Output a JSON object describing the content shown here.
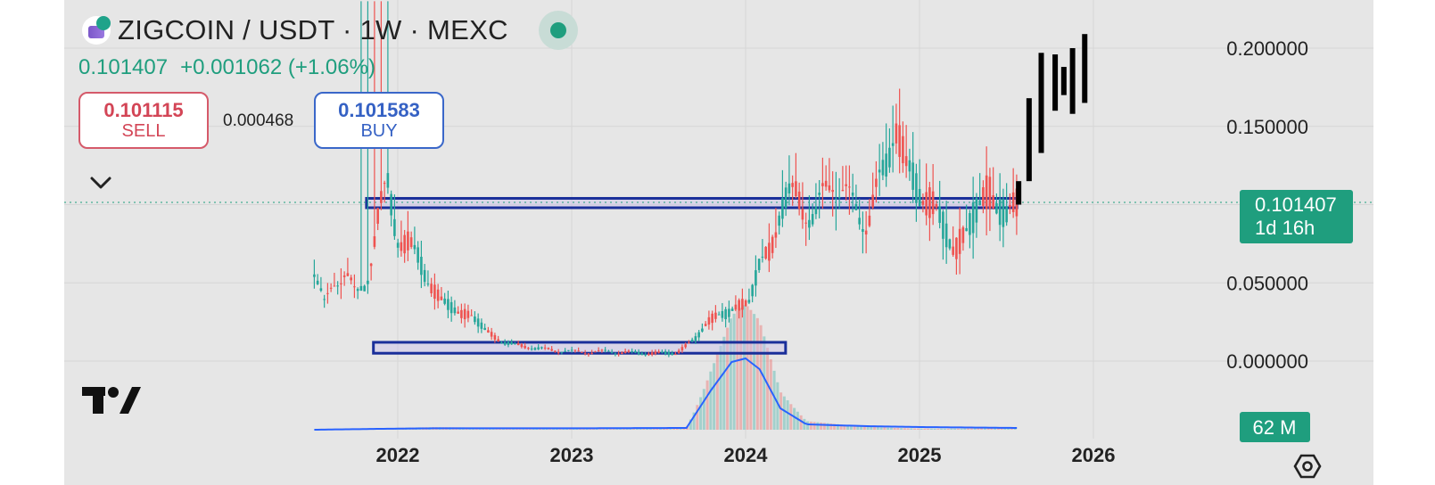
{
  "header": {
    "title": "ZIGCOIN / USDT · 1W · MEXC",
    "last_price": "0.101407",
    "change": "+0.001062 (+1.06%)"
  },
  "trade": {
    "sell_price": "0.101115",
    "sell_label": "SELL",
    "spread": "0.000468",
    "buy_price": "0.101583",
    "buy_label": "BUY"
  },
  "price_tag": {
    "value": "0.101407",
    "countdown": "1d 16h"
  },
  "volume_tag": "62 M",
  "icons": [
    "zigcoin-logo-icon",
    "live-status-icon",
    "chevron-down-icon",
    "tradingview-logo-icon",
    "chart-settings-icon"
  ],
  "colors": {
    "up": "#26a69a",
    "down": "#ef5350",
    "projection": "#000000",
    "zone": "#1a2f9a",
    "tag": "#1f9e7e",
    "volume_ma": "#2962ff"
  },
  "chart_data": {
    "type": "candlestick",
    "interval": "1W",
    "exchange": "MEXC",
    "y_ticks": [
      "0.200000",
      "0.150000",
      "0.050000",
      "0.000000"
    ],
    "y_range": [
      0.0,
      0.2
    ],
    "x_ticks": [
      "2022",
      "2023",
      "2024",
      "2025",
      "2026"
    ],
    "x_range": [
      2021.5,
      2026.1
    ],
    "current_price": 0.101407,
    "grid": true,
    "price_series": [
      [
        2021.52,
        0.06
      ],
      [
        2021.58,
        0.035
      ],
      [
        2021.64,
        0.05
      ],
      [
        2021.7,
        0.06
      ],
      [
        2021.76,
        0.04
      ],
      [
        2021.82,
        0.05
      ],
      [
        2021.88,
        0.09
      ],
      [
        2021.94,
        0.11
      ],
      [
        2022.0,
        0.08
      ],
      [
        2022.06,
        0.075
      ],
      [
        2022.12,
        0.065
      ],
      [
        2022.18,
        0.05
      ],
      [
        2022.24,
        0.04
      ],
      [
        2022.3,
        0.035
      ],
      [
        2022.36,
        0.03
      ],
      [
        2022.42,
        0.03
      ],
      [
        2022.5,
        0.02
      ],
      [
        2022.6,
        0.012
      ],
      [
        2022.8,
        0.008
      ],
      [
        2023.0,
        0.006
      ],
      [
        2023.2,
        0.006
      ],
      [
        2023.4,
        0.005
      ],
      [
        2023.6,
        0.005
      ],
      [
        2023.66,
        0.01
      ],
      [
        2023.72,
        0.015
      ],
      [
        2023.78,
        0.025
      ],
      [
        2023.84,
        0.03
      ],
      [
        2023.9,
        0.03
      ],
      [
        2023.96,
        0.035
      ],
      [
        2024.02,
        0.04
      ],
      [
        2024.08,
        0.06
      ],
      [
        2024.14,
        0.07
      ],
      [
        2024.2,
        0.1
      ],
      [
        2024.3,
        0.105
      ],
      [
        2024.4,
        0.09
      ],
      [
        2024.5,
        0.12
      ],
      [
        2024.6,
        0.1
      ],
      [
        2024.7,
        0.09
      ],
      [
        2024.8,
        0.12
      ],
      [
        2024.86,
        0.16
      ],
      [
        2024.92,
        0.12
      ],
      [
        2025.0,
        0.11
      ],
      [
        2025.1,
        0.095
      ],
      [
        2025.2,
        0.07
      ],
      [
        2025.3,
        0.09
      ],
      [
        2025.4,
        0.11
      ],
      [
        2025.5,
        0.09
      ],
      [
        2025.56,
        0.101407
      ]
    ],
    "projection_bars": [
      {
        "x": 2025.57,
        "low": 0.1,
        "high": 0.115
      },
      {
        "x": 2025.63,
        "low": 0.115,
        "high": 0.168
      },
      {
        "x": 2025.7,
        "low": 0.133,
        "high": 0.197
      },
      {
        "x": 2025.78,
        "low": 0.16,
        "high": 0.196
      },
      {
        "x": 2025.83,
        "low": 0.17,
        "high": 0.188
      },
      {
        "x": 2025.88,
        "low": 0.158,
        "high": 0.2
      },
      {
        "x": 2025.95,
        "low": 0.165,
        "high": 0.209
      }
    ],
    "zones": [
      {
        "x_start": 2021.82,
        "x_end": 2025.56,
        "low": 0.098,
        "high": 0.104
      },
      {
        "x_start": 2021.86,
        "x_end": 2024.23,
        "low": 0.005,
        "high": 0.012
      }
    ],
    "volume_ma": [
      [
        2021.52,
        0.0
      ],
      [
        2021.9,
        0.5
      ],
      [
        2022.2,
        0.8
      ],
      [
        2023.0,
        0.8
      ],
      [
        2023.66,
        1.0
      ],
      [
        2023.8,
        22
      ],
      [
        2023.92,
        38
      ],
      [
        2024.0,
        40
      ],
      [
        2024.08,
        34
      ],
      [
        2024.2,
        12
      ],
      [
        2024.35,
        3
      ],
      [
        2024.7,
        2
      ],
      [
        2025.0,
        1.5
      ],
      [
        2025.56,
        1
      ]
    ]
  }
}
